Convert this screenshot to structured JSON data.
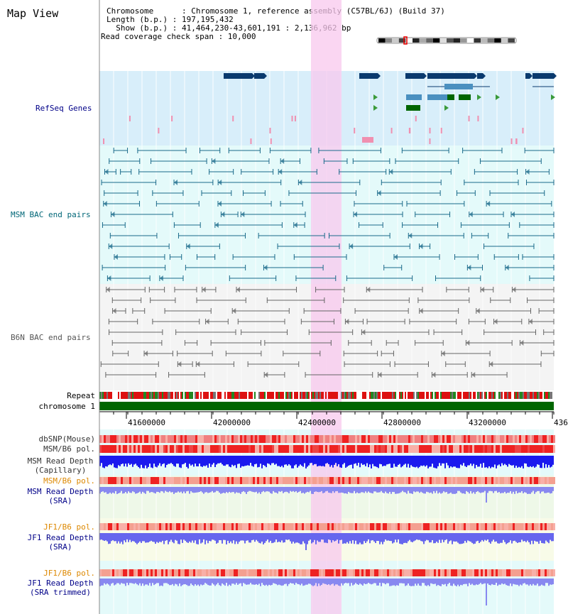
{
  "page": {
    "title": "Map View",
    "info": {
      "chromosome_line": "Chromosome      : Chromosome 1, reference assembly (C57BL/6J) (Build 37)",
      "length_line": "Length (b.p.) : 197,195,432",
      "show_line": "  Show (b.p.) : 41,464,230-43,601,191 : 2,136,962 bp",
      "coverage_line": "Read coverage check span : 10,000"
    }
  },
  "tracks": {
    "refseq": "RefSeq Genes",
    "msm_bac": "MSM BAC end pairs",
    "b6n_bac": "B6N BAC end pairs",
    "repeat": "Repeat",
    "chromosome": "chromosome 1",
    "dbsnp": "dbSNP(Mouse)",
    "msm_b6_pol_1": "MSM/B6 pol.",
    "msm_depth_cap_1": "MSM Read Depth",
    "msm_depth_cap_2": "(Capillary)",
    "msm_b6_pol_2": "MSM/B6 pol.",
    "msm_depth_sra_1": "MSM Read Depth",
    "msm_depth_sra_2": "(SRA)",
    "jf1_b6_pol_1": "JF1/B6 pol.",
    "jf1_depth_sra_1": "JF1 Read Depth",
    "jf1_depth_sra_2": "(SRA)",
    "jf1_b6_pol_2": "JF1/B6 pol.",
    "jf1_depth_trim_1": "JF1 Read Depth",
    "jf1_depth_trim_2": "(SRA trimmed)"
  },
  "axis": {
    "ticks": [
      "41600000",
      "42000000",
      "42400000",
      "42800000",
      "43200000",
      "436"
    ]
  },
  "colors": {
    "refseq_bg": "#d8eefa",
    "msm_bg": "#e4fafa",
    "b6n_bg": "#f4f4f4",
    "highlight": "#f8c8ee",
    "chromosome": "#006600",
    "depth_blue": "#1a1aee",
    "depth_light": "#8888f0",
    "label_navy": "#000088",
    "label_teal": "#006677",
    "label_orange": "#dd8800"
  }
}
